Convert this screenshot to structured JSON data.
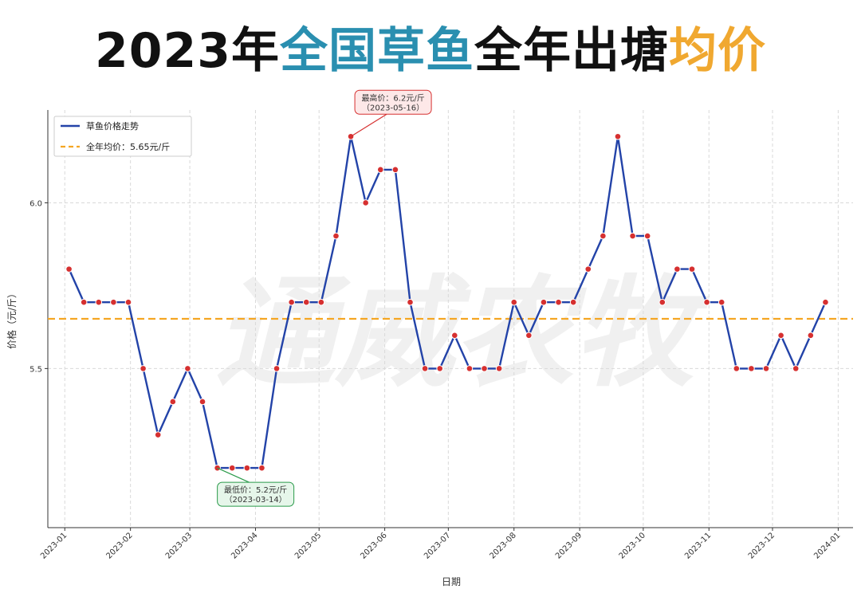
{
  "title": {
    "part1": "2023年",
    "part2": "全国草鱼",
    "part3": "全年出塘",
    "part4": "均价",
    "colors": {
      "part1": "#111111",
      "part2": "#2a8fb0",
      "part3": "#111111",
      "part4": "#f0a830"
    }
  },
  "watermark": "通威农牧",
  "chart_data": {
    "type": "line",
    "title": "2023年全国草鱼全年出塘均价",
    "xlabel": "日期",
    "ylabel": "价格（元/斤）",
    "ylim": [
      5.02,
      6.28
    ],
    "yticks": [
      5.5,
      6.0
    ],
    "ytick_labels": [
      "5.5",
      "6.0"
    ],
    "xticks": [
      "2023-01-01",
      "2023-02-01",
      "2023-03-01",
      "2023-04-01",
      "2023-05-01",
      "2023-06-01",
      "2023-07-01",
      "2023-08-01",
      "2023-09-01",
      "2023-10-01",
      "2023-11-01",
      "2023-12-01",
      "2024-01-01"
    ],
    "xtick_labels": [
      "2023-01",
      "2023-02",
      "2023-03",
      "2023-04",
      "2023-05",
      "2023-06",
      "2023-07",
      "2023-08",
      "2023-09",
      "2023-10",
      "2023-11",
      "2023-12",
      "2024-01"
    ],
    "xlim": [
      "2022-12-24",
      "2024-01-08"
    ],
    "grid": true,
    "series": [
      {
        "name": "草鱼价格走势",
        "color": "#2343a8",
        "marker_color": "#d63030",
        "x": [
          "2023-01-03",
          "2023-01-10",
          "2023-01-17",
          "2023-01-24",
          "2023-01-31",
          "2023-02-07",
          "2023-02-14",
          "2023-02-21",
          "2023-02-28",
          "2023-03-07",
          "2023-03-14",
          "2023-03-21",
          "2023-03-28",
          "2023-04-04",
          "2023-04-11",
          "2023-04-18",
          "2023-04-25",
          "2023-05-02",
          "2023-05-09",
          "2023-05-16",
          "2023-05-23",
          "2023-05-30",
          "2023-06-06",
          "2023-06-13",
          "2023-06-20",
          "2023-06-27",
          "2023-07-04",
          "2023-07-11",
          "2023-07-18",
          "2023-07-25",
          "2023-08-01",
          "2023-08-08",
          "2023-08-15",
          "2023-08-22",
          "2023-08-29",
          "2023-09-05",
          "2023-09-12",
          "2023-09-19",
          "2023-09-26",
          "2023-10-03",
          "2023-10-10",
          "2023-10-17",
          "2023-10-24",
          "2023-10-31",
          "2023-11-07",
          "2023-11-14",
          "2023-11-21",
          "2023-11-28",
          "2023-12-05",
          "2023-12-12",
          "2023-12-19",
          "2023-12-26"
        ],
        "values": [
          5.8,
          5.7,
          5.7,
          5.7,
          5.7,
          5.5,
          5.3,
          5.4,
          5.5,
          5.4,
          5.2,
          5.2,
          5.2,
          5.2,
          5.5,
          5.7,
          5.7,
          5.7,
          5.9,
          6.2,
          6.0,
          6.1,
          6.1,
          5.7,
          5.5,
          5.5,
          5.6,
          5.5,
          5.5,
          5.5,
          5.7,
          5.6,
          5.7,
          5.7,
          5.7,
          5.8,
          5.9,
          6.2,
          5.9,
          5.9,
          5.7,
          5.8,
          5.8,
          5.7,
          5.7,
          5.5,
          5.5,
          5.5,
          5.6,
          5.5,
          5.6,
          5.7
        ]
      }
    ],
    "mean_line": {
      "name": "全年均价：5.65元/斤",
      "value": 5.65,
      "color": "#f5a623"
    },
    "annotations": [
      {
        "line1": "最高价：6.2元/斤",
        "line2": "（2023-05-16）",
        "x": "2023-05-16",
        "y": 6.2,
        "color": "#d63030",
        "bg": "#fde8e8",
        "side": "above"
      },
      {
        "line1": "最低价：5.2元/斤",
        "line2": "（2023-03-14）",
        "x": "2023-03-14",
        "y": 5.2,
        "color": "#2a9a4a",
        "bg": "#e6f6ea",
        "side": "below"
      }
    ],
    "legend": {
      "placement": "top-left"
    }
  }
}
